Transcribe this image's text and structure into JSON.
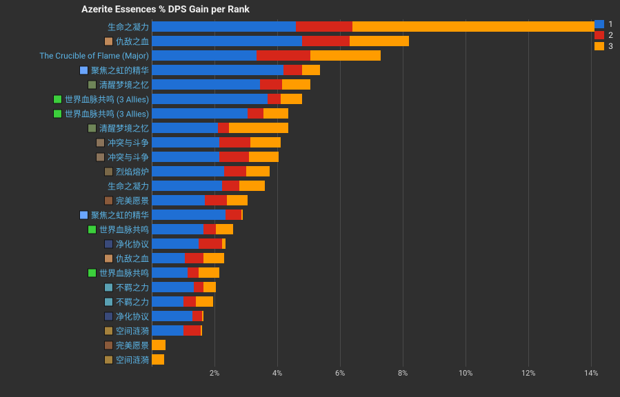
{
  "chart": {
    "title": "Azerite Essences % DPS Gain per Rank",
    "title_fontsize": 14,
    "background_color": "#2f2f2f",
    "grid_color": "#4a4a4a",
    "text_color": "#e6e6e6",
    "label_color": "#5bb4e6",
    "series_colors": {
      "r1": "#1f6fd4",
      "r2": "#d6261a",
      "r3": "#ff9c00"
    },
    "legend": {
      "items": [
        "1",
        "2",
        "3"
      ]
    },
    "x_axis": {
      "min": 0,
      "max": 14.5,
      "ticks": [
        2,
        4,
        6,
        8,
        10,
        12,
        14
      ],
      "tick_labels": [
        "2%",
        "4%",
        "6%",
        "8%",
        "10%",
        "12%",
        "14%"
      ]
    },
    "rows": [
      {
        "label": "生命之凝力",
        "icon": null,
        "r1": 4.6,
        "r2": 1.8,
        "r3": 7.7
      },
      {
        "label": "仇敌之血",
        "icon": "#c0895a",
        "r1": 4.8,
        "r2": 1.5,
        "r3": 1.9
      },
      {
        "label": "The Crucible of Flame (Major)",
        "icon": null,
        "r1": 3.35,
        "r2": 1.7,
        "r3": 2.25
      },
      {
        "label": "聚焦之虹的精华",
        "icon": "#6aa5ff",
        "r1": 4.2,
        "r2": 0.6,
        "r3": 0.55
      },
      {
        "label": "清醒梦境之忆",
        "icon": "#6f8558",
        "r1": 3.45,
        "r2": 0.7,
        "r3": 0.9
      },
      {
        "label": "世界血脉共鸣 (3 Allies)",
        "icon": "#3ccf3c",
        "r1": 3.7,
        "r2": 0.4,
        "r3": 0.7
      },
      {
        "label": "世界血脉共鸣 (3 Allies)",
        "icon": "#3ccf3c",
        "r1": 3.05,
        "r2": 0.5,
        "r3": 0.8
      },
      {
        "label": "清醒梦境之忆",
        "icon": "#6f8558",
        "r1": 2.1,
        "r2": 0.35,
        "r3": 1.9
      },
      {
        "label": "冲突与斗争",
        "icon": "#8a735a",
        "r1": 2.15,
        "r2": 1.0,
        "r3": 0.95
      },
      {
        "label": "冲突与斗争",
        "icon": "#8a735a",
        "r1": 2.15,
        "r2": 0.95,
        "r3": 0.95
      },
      {
        "label": "烈焰熔炉",
        "icon": "#7a6848",
        "r1": 2.3,
        "r2": 0.7,
        "r3": 0.75
      },
      {
        "label": "生命之凝力",
        "icon": null,
        "r1": 2.25,
        "r2": 0.55,
        "r3": 0.8
      },
      {
        "label": "完美愿景",
        "icon": "#8a5a3b",
        "r1": 1.7,
        "r2": 0.7,
        "r3": 0.65
      },
      {
        "label": "聚焦之虹的精华",
        "icon": "#6aa5ff",
        "r1": 2.35,
        "r2": 0.5,
        "r3": 0.05
      },
      {
        "label": "世界血脉共鸣",
        "icon": "#3ccf3c",
        "r1": 1.65,
        "r2": 0.4,
        "r3": 0.55
      },
      {
        "label": "净化协议",
        "icon": "#3a4a7a",
        "r1": 1.5,
        "r2": 0.75,
        "r3": 0.1
      },
      {
        "label": "仇敌之血",
        "icon": "#c0895a",
        "r1": 1.05,
        "r2": 0.6,
        "r3": 0.65
      },
      {
        "label": "世界血脉共鸣",
        "icon": "#3ccf3c",
        "r1": 1.15,
        "r2": 0.35,
        "r3": 0.65
      },
      {
        "label": "不羁之力",
        "icon": "#5aa1b3",
        "r1": 1.35,
        "r2": 0.3,
        "r3": 0.4
      },
      {
        "label": "不羁之力",
        "icon": "#5aa1b3",
        "r1": 1.0,
        "r2": 0.4,
        "r3": 0.55
      },
      {
        "label": "净化协议",
        "icon": "#3a4a7a",
        "r1": 1.3,
        "r2": 0.3,
        "r3": 0.05
      },
      {
        "label": "空间涟漪",
        "icon": "#a5823d",
        "r1": 1.0,
        "r2": 0.55,
        "r3": 0.05
      },
      {
        "label": "完美愿景",
        "icon": "#8a5a3b",
        "r1": 0.0,
        "r2": 0.0,
        "r3": 0.45
      },
      {
        "label": "空间涟漪",
        "icon": "#a5823d",
        "r1": 0.0,
        "r2": 0.0,
        "r3": 0.4
      }
    ]
  }
}
